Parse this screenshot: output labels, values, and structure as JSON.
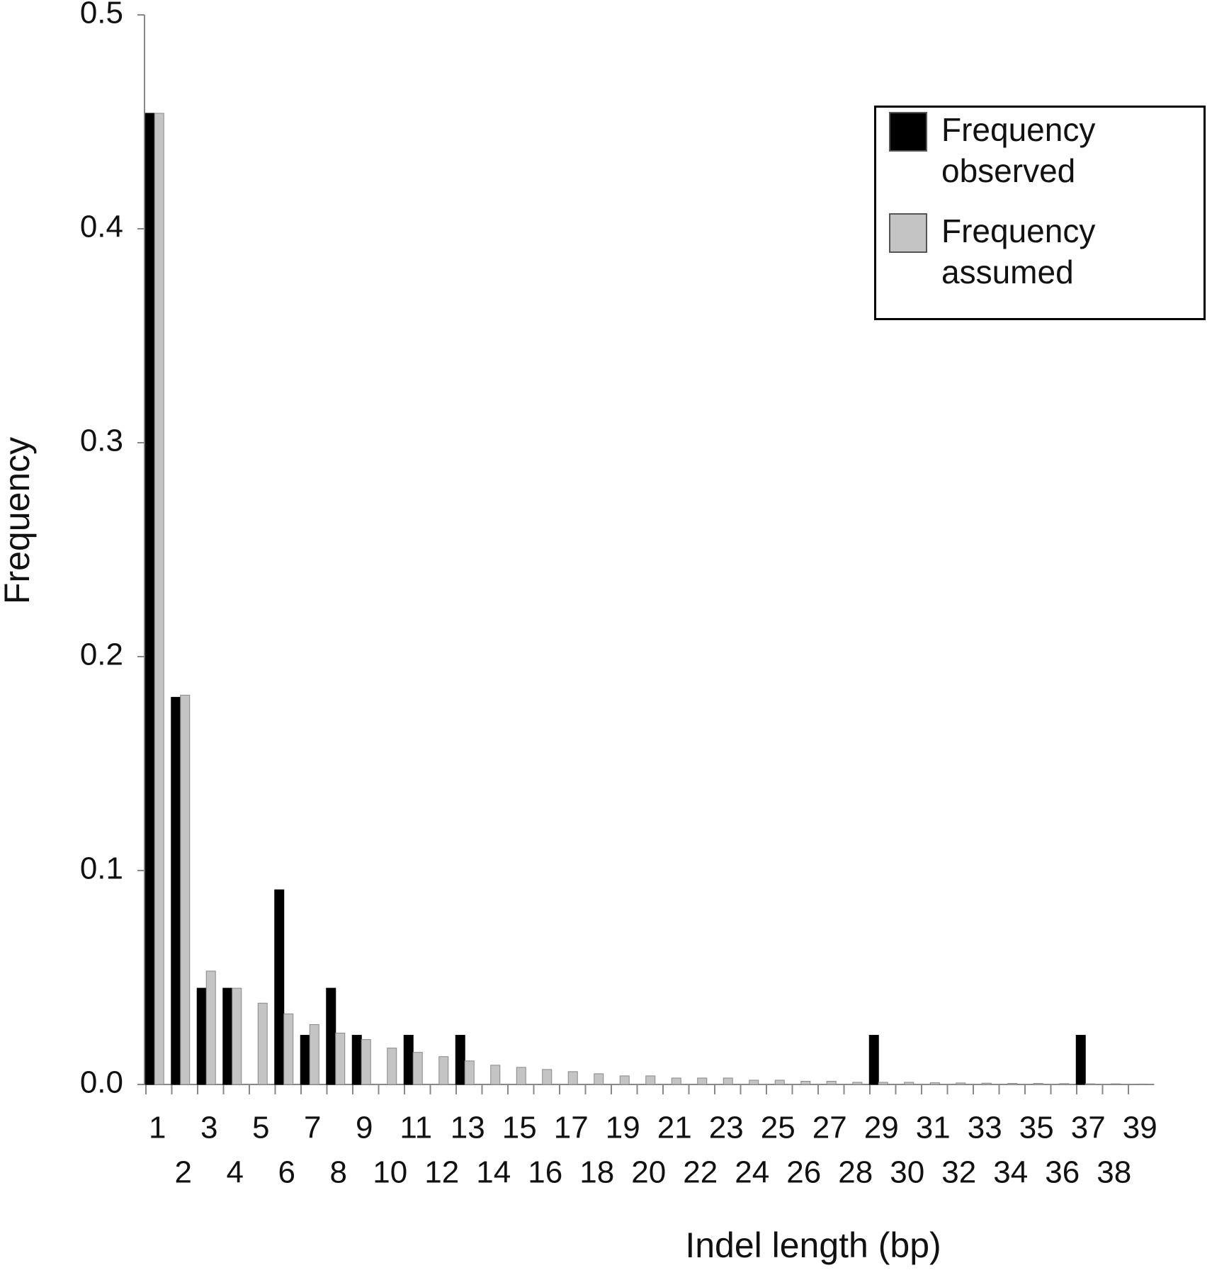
{
  "chart_data": {
    "type": "bar",
    "x_label": "Indel length (bp)",
    "y_label": "Frequency",
    "categories": [
      "1",
      "2",
      "3",
      "4",
      "5",
      "6",
      "7",
      "8",
      "9",
      "10",
      "11",
      "12",
      "13",
      "14",
      "15",
      "16",
      "17",
      "18",
      "19",
      "20",
      "21",
      "22",
      "23",
      "24",
      "25",
      "26",
      "27",
      "28",
      "29",
      "30",
      "31",
      "32",
      "33",
      "34",
      "35",
      "36",
      "37",
      "38",
      "39"
    ],
    "series": [
      {
        "name": "Frequency observed",
        "color": "#000000",
        "values": [
          0.454,
          0.181,
          0.045,
          0.045,
          0,
          0.091,
          0.023,
          0.045,
          0.023,
          0,
          0.023,
          0,
          0.023,
          0,
          0,
          0,
          0,
          0,
          0,
          0,
          0,
          0,
          0,
          0,
          0,
          0,
          0,
          0,
          0.023,
          0,
          0,
          0,
          0,
          0,
          0,
          0,
          0.023,
          0,
          0
        ]
      },
      {
        "name": "Frequency assumed",
        "color": "#c4c4c4",
        "values": [
          0.454,
          0.182,
          0.053,
          0.045,
          0.038,
          0.033,
          0.028,
          0.024,
          0.021,
          0.017,
          0.015,
          0.013,
          0.011,
          0.009,
          0.008,
          0.007,
          0.006,
          0.005,
          0.004,
          0.004,
          0.003,
          0.003,
          0.003,
          0.002,
          0.002,
          0.0015,
          0.0015,
          0.001,
          0.001,
          0.001,
          0.0008,
          0.0007,
          0.0006,
          0.0005,
          0.0005,
          0.0004,
          0.0003,
          0.0003,
          0.0002
        ]
      }
    ],
    "ylim": [
      0,
      0.5
    ],
    "yticks": [
      {
        "value": 0,
        "label": "0.0"
      },
      0.1,
      0.2,
      0.3,
      0.4,
      0.5
    ],
    "legend": "upper right"
  }
}
